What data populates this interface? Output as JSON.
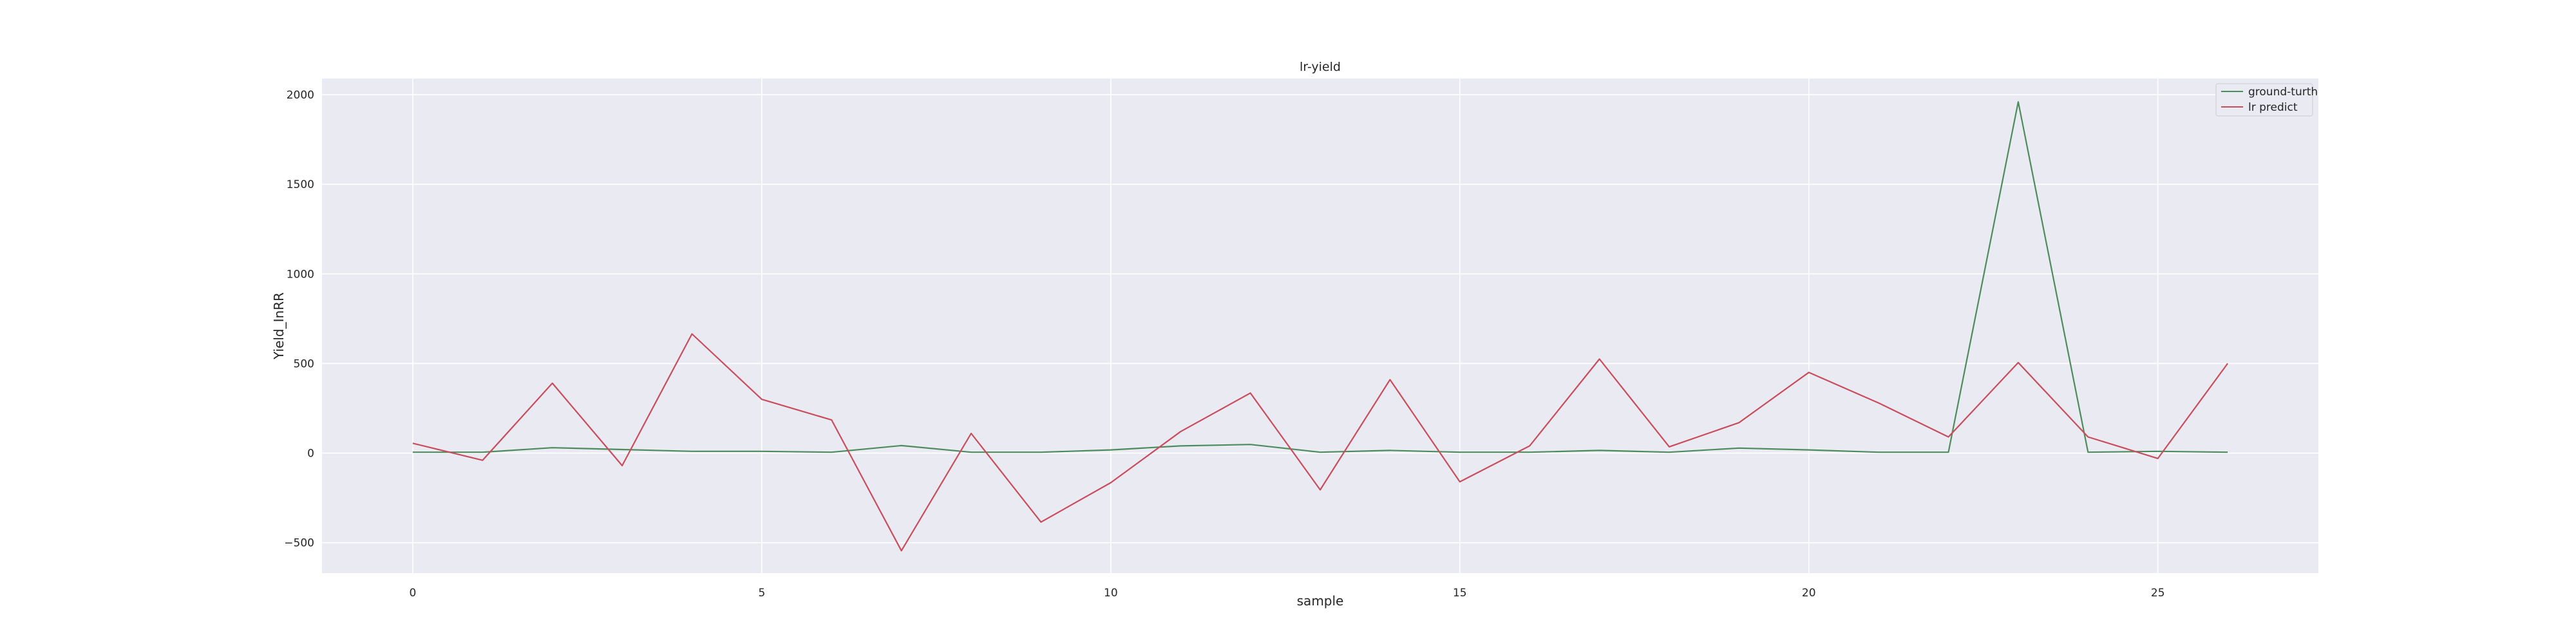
{
  "chart_data": {
    "type": "line",
    "title": "lr-yield",
    "xlabel": "sample",
    "ylabel": "Yield_InRR",
    "xlim": [
      -1.3,
      27.3
    ],
    "ylim": [
      -670,
      2090
    ],
    "xticks": [
      0,
      5,
      10,
      15,
      20,
      25
    ],
    "yticks": [
      -500,
      0,
      500,
      1000,
      1500,
      2000
    ],
    "ytick_labels": [
      "−500",
      "0",
      "500",
      "1000",
      "1500",
      "2000"
    ],
    "grid": true,
    "legend_position": "top-right",
    "x": [
      0,
      1,
      2,
      3,
      4,
      5,
      6,
      7,
      8,
      9,
      10,
      11,
      12,
      13,
      14,
      15,
      16,
      17,
      18,
      19,
      20,
      21,
      22,
      23,
      24,
      25,
      26
    ],
    "series": [
      {
        "name": "ground-turth",
        "color": "#4c8c5c",
        "values": [
          5,
          5,
          30,
          20,
          10,
          10,
          5,
          42,
          5,
          5,
          18,
          40,
          48,
          5,
          15,
          5,
          5,
          15,
          5,
          28,
          18,
          5,
          5,
          1960,
          5,
          10,
          5
        ]
      },
      {
        "name": "lr predict",
        "color": "#c84c5c",
        "values": [
          55,
          -40,
          390,
          -70,
          665,
          300,
          185,
          -545,
          110,
          -385,
          -165,
          120,
          335,
          -205,
          410,
          -160,
          40,
          525,
          35,
          170,
          450,
          280,
          90,
          505,
          90,
          -30,
          500
        ]
      }
    ]
  }
}
